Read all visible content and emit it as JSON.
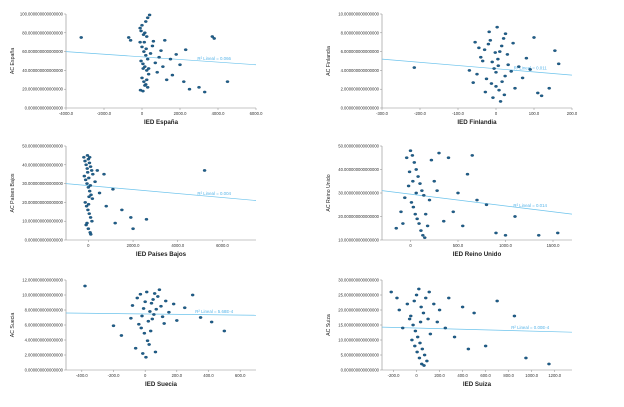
{
  "colors": {
    "point": "#1f5f8b",
    "point_stroke": "#0e3a5c",
    "fit_line": "#6cc3ec",
    "axis": "#8a8a8a"
  },
  "chart_data": [
    {
      "type": "scatter",
      "xlabel": "IED España",
      "ylabel": "AC España",
      "xlim": [
        -4000,
        6000
      ],
      "ylim": [
        0,
        100
      ],
      "xticks": [
        "-4000.0",
        "-2000.0",
        "0",
        "2000.0",
        "4000.0",
        "6000.0"
      ],
      "yticks": [
        "0.000000000000000",
        "20.000000000000000",
        "40.000000000000000",
        "60.000000000000000",
        "80.000000000000000",
        "100.000000000000000"
      ],
      "fit_label": "R² Lineal = 0.066",
      "fit": [
        [
          -4000,
          60
        ],
        [
          6000,
          46
        ]
      ],
      "points": [
        [
          -3200,
          75
        ],
        [
          -700,
          75
        ],
        [
          -600,
          72
        ],
        [
          -100,
          85
        ],
        [
          0,
          88
        ],
        [
          200,
          92
        ],
        [
          300,
          96
        ],
        [
          400,
          99
        ],
        [
          150,
          80
        ],
        [
          250,
          76
        ],
        [
          -100,
          70
        ],
        [
          0,
          65
        ],
        [
          100,
          60
        ],
        [
          200,
          56
        ],
        [
          300,
          52
        ],
        [
          -50,
          50
        ],
        [
          50,
          47
        ],
        [
          150,
          44
        ],
        [
          250,
          40
        ],
        [
          350,
          36
        ],
        [
          0,
          32
        ],
        [
          100,
          28
        ],
        [
          200,
          25
        ],
        [
          300,
          22
        ],
        [
          -80,
          19
        ],
        [
          50,
          18
        ],
        [
          150,
          24
        ],
        [
          250,
          30
        ],
        [
          350,
          42
        ],
        [
          450,
          58
        ],
        [
          550,
          66
        ],
        [
          600,
          71
        ],
        [
          700,
          48
        ],
        [
          800,
          38
        ],
        [
          900,
          54
        ],
        [
          1000,
          61
        ],
        [
          1100,
          44
        ],
        [
          1200,
          72
        ],
        [
          1300,
          30
        ],
        [
          1500,
          52
        ],
        [
          1600,
          35
        ],
        [
          1800,
          57
        ],
        [
          2000,
          46
        ],
        [
          2200,
          28
        ],
        [
          2300,
          62
        ],
        [
          2500,
          20
        ],
        [
          3000,
          22
        ],
        [
          3300,
          17
        ],
        [
          3700,
          76
        ],
        [
          3800,
          74
        ],
        [
          4500,
          28
        ],
        [
          -50,
          82
        ],
        [
          80,
          78
        ],
        [
          120,
          70
        ],
        [
          220,
          63
        ],
        [
          60,
          42
        ]
      ]
    },
    {
      "type": "scatter",
      "xlabel": "IED Finlandia",
      "ylabel": "AC Finlandia",
      "xlim": [
        -300,
        200
      ],
      "ylim": [
        0,
        10
      ],
      "xticks": [
        "-300.0",
        "-200.0",
        "-100.0",
        "0",
        "100.0",
        "200.0"
      ],
      "yticks": [
        "0.000000000000000",
        "2.000000000000000",
        "4.000000000000000",
        "6.000000000000000",
        "8.000000000000000",
        "10.000000000000000"
      ],
      "fit_label": "R² Lineal = 0.011",
      "fit": [
        [
          -300,
          5.2
        ],
        [
          200,
          3.5
        ]
      ],
      "points": [
        [
          -215,
          4.3
        ],
        [
          -50,
          3.6
        ],
        [
          -40,
          5.4
        ],
        [
          -30,
          6.2
        ],
        [
          -20,
          6.8
        ],
        [
          -15,
          7.2
        ],
        [
          -10,
          4.9
        ],
        [
          -5,
          4.2
        ],
        [
          0,
          3.8
        ],
        [
          5,
          5.2
        ],
        [
          10,
          6.0
        ],
        [
          15,
          6.6
        ],
        [
          20,
          7.4
        ],
        [
          25,
          7.9
        ],
        [
          30,
          5.7
        ],
        [
          -25,
          3.1
        ],
        [
          -12,
          2.6
        ],
        [
          0,
          2.3
        ],
        [
          8,
          1.9
        ],
        [
          16,
          2.8
        ],
        [
          24,
          3.4
        ],
        [
          32,
          4.6
        ],
        [
          -35,
          5.0
        ],
        [
          -45,
          6.4
        ],
        [
          -18,
          8.1
        ],
        [
          3,
          8.6
        ],
        [
          40,
          3.9
        ],
        [
          50,
          2.1
        ],
        [
          60,
          4.4
        ],
        [
          70,
          3.2
        ],
        [
          -60,
          2.7
        ],
        [
          -70,
          4.0
        ],
        [
          80,
          5.3
        ],
        [
          100,
          7.5
        ],
        [
          110,
          1.6
        ],
        [
          120,
          1.3
        ],
        [
          140,
          2.1
        ],
        [
          155,
          6.1
        ],
        [
          165,
          4.7
        ],
        [
          -8,
          1.1
        ],
        [
          12,
          0.7
        ],
        [
          -28,
          1.7
        ],
        [
          22,
          1.4
        ],
        [
          45,
          6.9
        ],
        [
          -55,
          7.0
        ],
        [
          90,
          4.1
        ],
        [
          -2,
          5.9
        ],
        [
          6,
          4.5
        ]
      ]
    },
    {
      "type": "scatter",
      "xlabel": "IED Países Bajos",
      "ylabel": "AC Países Bajos",
      "xlim": [
        -1000,
        7500
      ],
      "ylim": [
        0,
        50
      ],
      "xticks": [
        "0",
        "2000.0",
        "4000.0",
        "6000.0"
      ],
      "yticks": [
        "0.000000000000000",
        "10.000000000000000",
        "20.000000000000000",
        "30.000000000000000",
        "40.000000000000000",
        "50.000000000000000"
      ],
      "fit_label": "R² Lineal = 0.004",
      "fit": [
        [
          -1000,
          30
        ],
        [
          7500,
          21
        ]
      ],
      "points": [
        [
          -200,
          44
        ],
        [
          -150,
          42
        ],
        [
          -100,
          40
        ],
        [
          -50,
          38
        ],
        [
          0,
          43
        ],
        [
          50,
          41
        ],
        [
          100,
          39
        ],
        [
          150,
          37
        ],
        [
          200,
          35
        ],
        [
          -180,
          34
        ],
        [
          -120,
          32
        ],
        [
          -60,
          30
        ],
        [
          0,
          28
        ],
        [
          60,
          26
        ],
        [
          120,
          24
        ],
        [
          180,
          22
        ],
        [
          -140,
          20
        ],
        [
          -80,
          18
        ],
        [
          -20,
          16
        ],
        [
          40,
          14
        ],
        [
          100,
          12
        ],
        [
          160,
          10
        ],
        [
          -100,
          8
        ],
        [
          0,
          6
        ],
        [
          80,
          4
        ],
        [
          -40,
          45
        ],
        [
          20,
          33
        ],
        [
          90,
          29
        ],
        [
          300,
          31
        ],
        [
          400,
          37
        ],
        [
          500,
          25
        ],
        [
          700,
          35
        ],
        [
          800,
          18
        ],
        [
          1100,
          27
        ],
        [
          1200,
          9
        ],
        [
          1500,
          16
        ],
        [
          1900,
          12
        ],
        [
          2000,
          6
        ],
        [
          2600,
          11
        ],
        [
          -30,
          36
        ],
        [
          30,
          23
        ],
        [
          10,
          19
        ],
        [
          5200,
          37
        ],
        [
          -60,
          9
        ],
        [
          110,
          3
        ],
        [
          60,
          44
        ]
      ]
    },
    {
      "type": "scatter",
      "xlabel": "IED Reino Unido",
      "ylabel": "AC Reino Unido",
      "xlim": [
        -300,
        1700
      ],
      "ylim": [
        10,
        50
      ],
      "xticks": [
        "0",
        "500.0",
        "1000.0",
        "1500.0"
      ],
      "yticks": [
        "10.000000000000000",
        "20.000000000000000",
        "30.000000000000000",
        "40.000000000000000",
        "50.000000000000000"
      ],
      "fit_label": "R² Lineal = 0.014",
      "fit": [
        [
          -300,
          31
        ],
        [
          1700,
          21
        ]
      ],
      "points": [
        [
          -150,
          15
        ],
        [
          -100,
          22
        ],
        [
          -60,
          28
        ],
        [
          -20,
          33
        ],
        [
          0,
          48
        ],
        [
          20,
          46
        ],
        [
          40,
          43
        ],
        [
          60,
          40
        ],
        [
          80,
          37
        ],
        [
          100,
          34
        ],
        [
          120,
          31
        ],
        [
          140,
          29
        ],
        [
          10,
          26
        ],
        [
          30,
          24
        ],
        [
          50,
          21
        ],
        [
          70,
          19
        ],
        [
          90,
          17
        ],
        [
          110,
          14
        ],
        [
          130,
          12
        ],
        [
          150,
          11
        ],
        [
          -40,
          45
        ],
        [
          -10,
          39
        ],
        [
          200,
          27
        ],
        [
          250,
          35
        ],
        [
          300,
          47
        ],
        [
          400,
          45
        ],
        [
          450,
          22
        ],
        [
          500,
          30
        ],
        [
          550,
          16
        ],
        [
          600,
          38
        ],
        [
          650,
          46
        ],
        [
          700,
          27
        ],
        [
          800,
          25
        ],
        [
          900,
          13
        ],
        [
          1000,
          12
        ],
        [
          1100,
          20
        ],
        [
          1350,
          12
        ],
        [
          1550,
          13
        ],
        [
          160,
          21
        ],
        [
          180,
          16
        ],
        [
          220,
          44
        ],
        [
          280,
          31
        ],
        [
          350,
          18
        ],
        [
          -80,
          17
        ],
        [
          60,
          30
        ],
        [
          25,
          35
        ]
      ]
    },
    {
      "type": "scatter",
      "xlabel": "IED Suecia",
      "ylabel": "AC Suecia",
      "xlim": [
        -500,
        700
      ],
      "ylim": [
        0,
        12
      ],
      "xticks": [
        "-400.0",
        "-200.0",
        "0",
        "200.0",
        "400.0",
        "600.0"
      ],
      "yticks": [
        "0.000000000000000",
        "2.000000000000000",
        "4.000000000000000",
        "6.000000000000000",
        "8.000000000000000",
        "10.000000000000000",
        "12.000000000000000"
      ],
      "fit_label": "R² Lineal = 5.68E-4",
      "fit": [
        [
          -500,
          7.6
        ],
        [
          700,
          7.3
        ]
      ],
      "points": [
        [
          -380,
          11.2
        ],
        [
          -200,
          5.9
        ],
        [
          -150,
          4.6
        ],
        [
          -80,
          8.6
        ],
        [
          -50,
          9.6
        ],
        [
          -30,
          10.1
        ],
        [
          -20,
          7.2
        ],
        [
          -10,
          8.2
        ],
        [
          0,
          9.1
        ],
        [
          10,
          10.4
        ],
        [
          20,
          6.5
        ],
        [
          30,
          7.8
        ],
        [
          40,
          8.9
        ],
        [
          50,
          9.4
        ],
        [
          60,
          10.2
        ],
        [
          -40,
          6.1
        ],
        [
          -25,
          5.6
        ],
        [
          -5,
          4.9
        ],
        [
          15,
          3.9
        ],
        [
          25,
          3.4
        ],
        [
          35,
          5.2
        ],
        [
          45,
          6.8
        ],
        [
          55,
          7.4
        ],
        [
          70,
          8.1
        ],
        [
          80,
          9.8
        ],
        [
          90,
          10.7
        ],
        [
          100,
          8.5
        ],
        [
          110,
          7.1
        ],
        [
          120,
          6.2
        ],
        [
          130,
          9.2
        ],
        [
          150,
          7.7
        ],
        [
          180,
          8.8
        ],
        [
          200,
          6.6
        ],
        [
          -60,
          2.9
        ],
        [
          -15,
          2.2
        ],
        [
          5,
          1.7
        ],
        [
          65,
          2.4
        ],
        [
          250,
          8.3
        ],
        [
          300,
          10.0
        ],
        [
          350,
          7.0
        ],
        [
          420,
          6.4
        ],
        [
          500,
          5.2
        ],
        [
          -90,
          6.9
        ]
      ]
    },
    {
      "type": "scatter",
      "xlabel": "IED Suiza",
      "ylabel": "AC Suiza",
      "xlim": [
        -300,
        1350
      ],
      "ylim": [
        0,
        30
      ],
      "xticks": [
        "-200.0",
        "0",
        "200.0",
        "400.0",
        "600.0",
        "800.0",
        "1000.0",
        "1200.0"
      ],
      "yticks": [
        "0.000000000000000",
        "5.000000000000000",
        "10.000000000000000",
        "15.000000000000000",
        "20.000000000000000",
        "25.000000000000000",
        "30.000000000000000"
      ],
      "fit_label": "R² Lineal = 0.00E-4",
      "fit": [
        [
          -300,
          14.3
        ],
        [
          1350,
          12.6
        ]
      ],
      "points": [
        [
          -220,
          26
        ],
        [
          -170,
          24
        ],
        [
          -150,
          20
        ],
        [
          -120,
          14
        ],
        [
          -80,
          22
        ],
        [
          -50,
          18
        ],
        [
          -20,
          23
        ],
        [
          0,
          25
        ],
        [
          20,
          27
        ],
        [
          40,
          21
        ],
        [
          60,
          19
        ],
        [
          80,
          24
        ],
        [
          100,
          17
        ],
        [
          -30,
          15
        ],
        [
          -10,
          13
        ],
        [
          10,
          11
        ],
        [
          30,
          9
        ],
        [
          50,
          7
        ],
        [
          70,
          5
        ],
        [
          90,
          3
        ],
        [
          -40,
          10
        ],
        [
          -15,
          8
        ],
        [
          5,
          6
        ],
        [
          25,
          4
        ],
        [
          45,
          2
        ],
        [
          65,
          1.5
        ],
        [
          120,
          12
        ],
        [
          150,
          22
        ],
        [
          180,
          16
        ],
        [
          200,
          20
        ],
        [
          250,
          14
        ],
        [
          280,
          24
        ],
        [
          330,
          11
        ],
        [
          400,
          21
        ],
        [
          450,
          7
        ],
        [
          500,
          19
        ],
        [
          600,
          8
        ],
        [
          700,
          23
        ],
        [
          850,
          18
        ],
        [
          950,
          4
        ],
        [
          1150,
          2
        ],
        [
          110,
          26
        ],
        [
          -60,
          17
        ],
        [
          35,
          16
        ]
      ]
    }
  ]
}
